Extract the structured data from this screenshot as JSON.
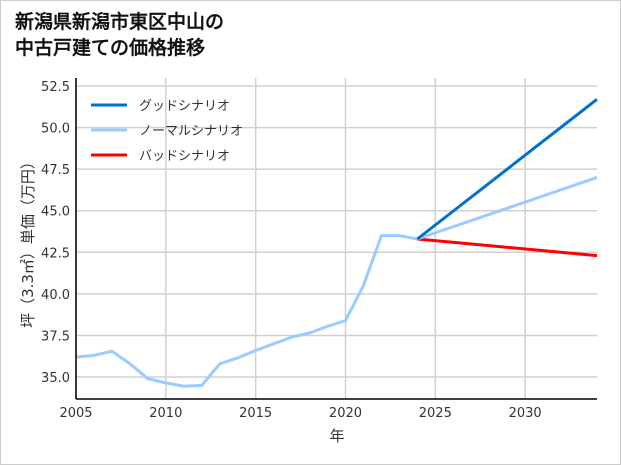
{
  "chart_data": {
    "type": "line",
    "title": "新潟県新潟市東区中山の\n中古戸建ての価格推移",
    "xlabel": "年",
    "ylabel": "坪（3.3㎡）単価（万円）",
    "xlim": [
      2005,
      2034
    ],
    "ylim": [
      33.68,
      52.98
    ],
    "xticks": [
      2005,
      2010,
      2015,
      2020,
      2025,
      2030
    ],
    "yticks": [
      35.0,
      37.5,
      40.0,
      42.5,
      45.0,
      47.5,
      50.0,
      52.5
    ],
    "grid": true,
    "legend_position": "top-left",
    "history": {
      "x": [
        2005,
        2006,
        2007,
        2008,
        2009,
        2010,
        2011,
        2012,
        2013,
        2014,
        2015,
        2016,
        2017,
        2018,
        2019,
        2020,
        2021,
        2022,
        2023,
        2024
      ],
      "y": [
        36.2,
        36.3,
        36.55,
        35.8,
        34.9,
        34.65,
        34.45,
        34.5,
        35.8,
        36.15,
        36.6,
        37.0,
        37.4,
        37.65,
        38.05,
        38.4,
        40.5,
        43.5,
        43.5,
        43.3
      ],
      "color": "#99ccff"
    },
    "series": [
      {
        "name": "グッドシナリオ",
        "color": "#0070cc",
        "x": [
          2024,
          2034
        ],
        "y": [
          43.3,
          51.7
        ]
      },
      {
        "name": "ノーマルシナリオ",
        "color": "#99ccff",
        "x": [
          2024,
          2034
        ],
        "y": [
          43.3,
          47.0
        ]
      },
      {
        "name": "バッドシナリオ",
        "color": "#ff0000",
        "x": [
          2024,
          2034
        ],
        "y": [
          43.3,
          42.3
        ]
      }
    ]
  }
}
